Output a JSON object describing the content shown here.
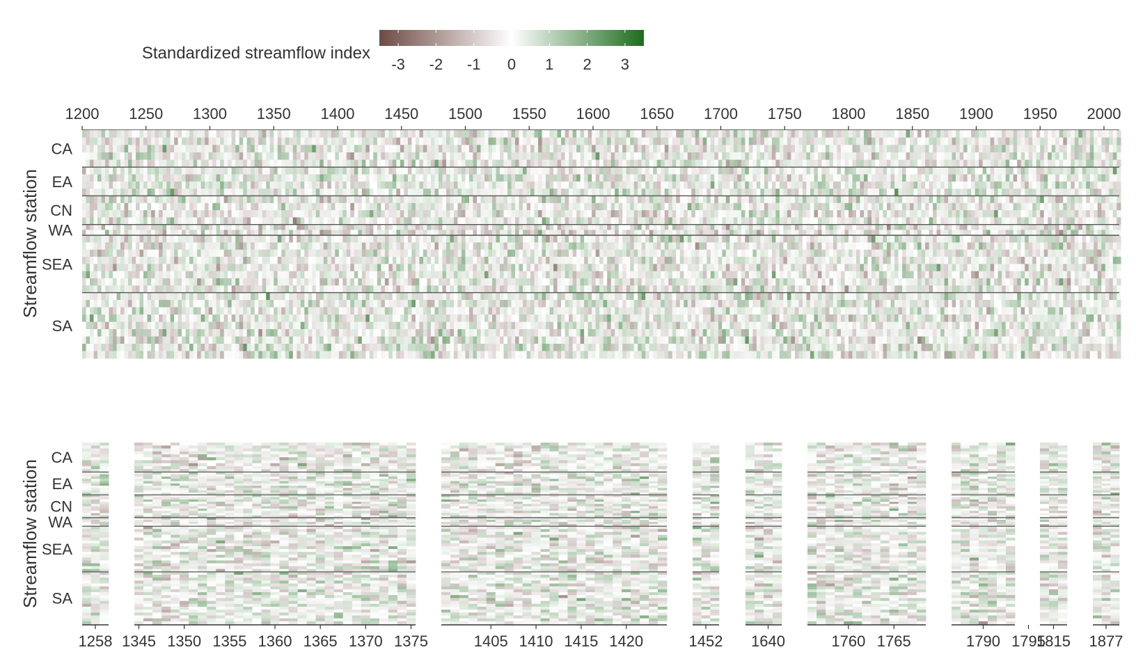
{
  "chart_data": {
    "type": "heatmap",
    "colorbar": {
      "title": "Standardized streamflow index",
      "ticks": [
        -3,
        -2,
        -1,
        0,
        1,
        2,
        3
      ],
      "range": [
        -3.5,
        3.5
      ],
      "colors": {
        "low": "#6e4a44",
        "mid": "#ffffff",
        "high": "#1e6b1e"
      }
    },
    "groups": [
      "CA",
      "EA",
      "CN",
      "WA",
      "SEA",
      "SA"
    ],
    "group_station_counts": [
      31,
      24,
      24,
      9,
      48,
      55
    ],
    "ylabel": "Streamflow station",
    "overview": {
      "x_range": [
        1200,
        2012
      ],
      "x_ticks": [
        1200,
        1250,
        1300,
        1350,
        1400,
        1450,
        1500,
        1550,
        1600,
        1650,
        1700,
        1750,
        1800,
        1850,
        1900,
        1950,
        2000
      ]
    },
    "zoom_panels": [
      {
        "years": [
          1257,
          1258,
          1259
        ],
        "ticks": [
          1258
        ]
      },
      {
        "years": [
          1345,
          1375
        ],
        "ticks": [
          1345,
          1350,
          1355,
          1360,
          1365,
          1370,
          1375
        ]
      },
      {
        "years": [
          1400,
          1424
        ],
        "ticks": [
          1405,
          1410,
          1415,
          1420
        ]
      },
      {
        "years": [
          1451,
          1453
        ],
        "ticks": [
          1452
        ]
      },
      {
        "years": [
          1638,
          1641
        ],
        "ticks": [
          1640
        ]
      },
      {
        "years": [
          1756,
          1768
        ],
        "ticks": [
          1760,
          1765
        ]
      },
      {
        "years": [
          1787,
          1793
        ],
        "ticks": [
          1790,
          1795
        ]
      },
      {
        "years": [
          1814,
          1816
        ],
        "ticks": [
          1815
        ]
      },
      {
        "years": [
          1876,
          1878
        ],
        "ticks": [
          1877
        ]
      }
    ]
  }
}
